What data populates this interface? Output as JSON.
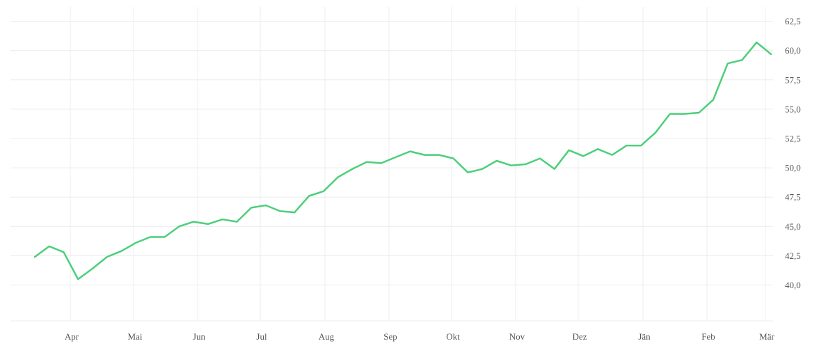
{
  "chart_data": {
    "type": "line",
    "title": "",
    "xlabel": "",
    "ylabel": "",
    "x_tick_labels": [
      "Apr",
      "Mai",
      "Jun",
      "Jul",
      "Aug",
      "Sep",
      "Okt",
      "Nov",
      "Dez",
      "Jän",
      "Feb",
      "Mär"
    ],
    "y_tick_labels": [
      "40,0",
      "42,5",
      "45,0",
      "47,5",
      "50,0",
      "52,5",
      "55,0",
      "57,5",
      "60,0",
      "62,5"
    ],
    "y_ticks": [
      40.0,
      42.5,
      45.0,
      47.5,
      50.0,
      52.5,
      55.0,
      57.5,
      60.0,
      62.5
    ],
    "ylim": [
      37.0,
      63.5
    ],
    "y_axis_position": "right",
    "grid": true,
    "legend": "none",
    "color": "#4ccf7a",
    "series": [
      {
        "values": [
          42.4,
          43.3,
          42.8,
          40.5,
          41.4,
          42.4,
          42.9,
          43.6,
          44.1,
          44.1,
          45.0,
          45.4,
          45.2,
          45.6,
          45.4,
          46.6,
          46.8,
          46.3,
          46.2,
          47.6,
          48.0,
          49.2,
          49.9,
          50.5,
          50.4,
          50.9,
          51.4,
          51.1,
          51.1,
          50.8,
          49.6,
          49.9,
          50.6,
          50.2,
          50.3,
          50.8,
          49.9,
          51.5,
          51.0,
          51.6,
          51.1,
          51.9,
          51.9,
          53.0,
          54.6,
          54.6,
          54.7,
          55.8,
          58.9,
          59.2,
          60.7,
          59.7
        ]
      }
    ]
  }
}
